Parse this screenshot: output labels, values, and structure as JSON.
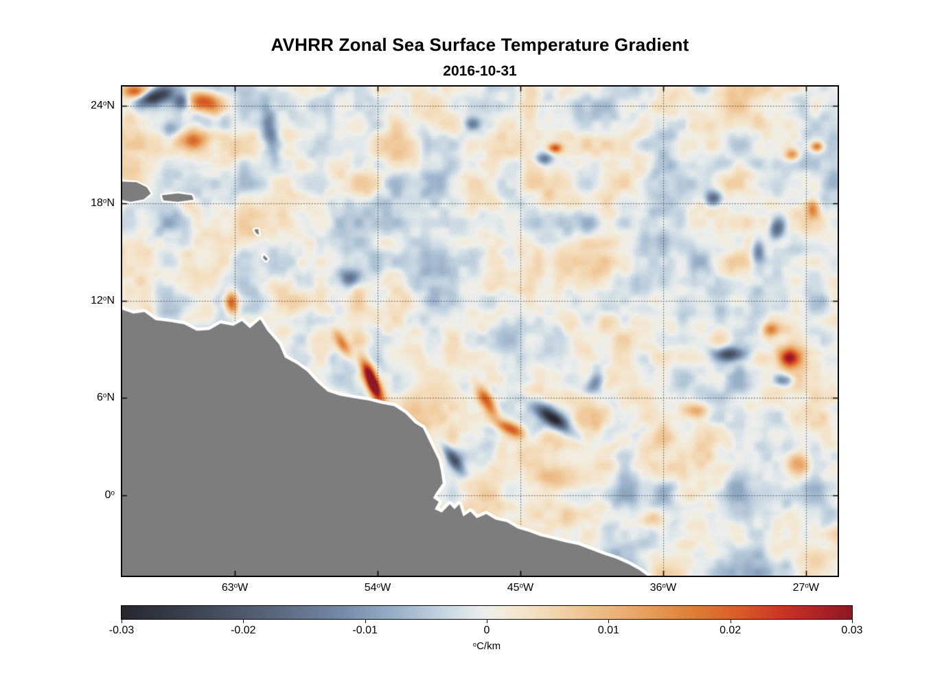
{
  "title": "AVHRR Zonal Sea Surface Temperature Gradient",
  "subtitle": "2016-10-31",
  "chart_data": {
    "type": "heatmap",
    "title": "AVHRR Zonal Sea Surface Temperature Gradient",
    "date": "2016-10-31",
    "variable": "zonal sea surface temperature gradient",
    "deg_symbol": "o",
    "unit_text": "C/km",
    "geo": {
      "lon_min": -70.1,
      "lon_max": -25.0,
      "lat_min": -4.95,
      "lat_max": 25.2
    },
    "x_ticks": [
      {
        "label_num": "63",
        "label_hemi": "W",
        "lon": -63
      },
      {
        "label_num": "54",
        "label_hemi": "W",
        "lon": -54
      },
      {
        "label_num": "45",
        "label_hemi": "W",
        "lon": -45
      },
      {
        "label_num": "36",
        "label_hemi": "W",
        "lon": -36
      },
      {
        "label_num": "27",
        "label_hemi": "W",
        "lon": -27
      }
    ],
    "y_ticks": [
      {
        "label_num": "24",
        "label_hemi": "N",
        "lat": 24
      },
      {
        "label_num": "18",
        "label_hemi": "N",
        "lat": 18
      },
      {
        "label_num": "12",
        "label_hemi": "N",
        "lat": 12
      },
      {
        "label_num": "6",
        "label_hemi": "N",
        "lat": 6
      },
      {
        "label_num": "0",
        "label_hemi": "",
        "lat": 0
      }
    ],
    "grid": {
      "on": true,
      "style": "dotted",
      "color": "#3a3a3a"
    },
    "colorbar": {
      "orientation": "horizontal",
      "min": -0.03,
      "max": 0.03,
      "ticks": [
        {
          "label": "-0.03",
          "v": -0.03
        },
        {
          "label": "-0.02",
          "v": -0.02
        },
        {
          "label": "-0.01",
          "v": -0.01
        },
        {
          "label": "0",
          "v": 0
        },
        {
          "label": "0.01",
          "v": 0.01
        },
        {
          "label": "0.02",
          "v": 0.02
        },
        {
          "label": "0.03",
          "v": 0.03
        }
      ],
      "stops": [
        {
          "p": 0.0,
          "c": "#27272f"
        },
        {
          "p": 0.1,
          "c": "#3d4452"
        },
        {
          "p": 0.2,
          "c": "#57647a"
        },
        {
          "p": 0.3,
          "c": "#7389a6"
        },
        {
          "p": 0.38,
          "c": "#9cb3cb"
        },
        {
          "p": 0.44,
          "c": "#c5d5e1"
        },
        {
          "p": 0.48,
          "c": "#e1e8ea"
        },
        {
          "p": 0.5,
          "c": "#edeeec"
        },
        {
          "p": 0.52,
          "c": "#f2ecdd"
        },
        {
          "p": 0.56,
          "c": "#f4e1c5"
        },
        {
          "p": 0.62,
          "c": "#f0ca9c"
        },
        {
          "p": 0.7,
          "c": "#eaa869"
        },
        {
          "p": 0.78,
          "c": "#e07f37"
        },
        {
          "p": 0.85,
          "c": "#d85927"
        },
        {
          "p": 0.91,
          "c": "#c83225"
        },
        {
          "p": 0.96,
          "c": "#ac2026"
        },
        {
          "p": 1.0,
          "c": "#8d1823"
        }
      ]
    },
    "sea_noise": {
      "seed": 11,
      "octaves": [
        {
          "scale": 2.4,
          "amp": 0.0052
        },
        {
          "scale": 1.2,
          "amp": 0.0036
        },
        {
          "scale": 0.6,
          "amp": 0.002
        }
      ]
    },
    "features_format": [
      "lon",
      "lat",
      "value_C_per_km",
      "sigma_x_deg",
      "sigma_y_deg",
      "rotation_deg"
    ],
    "features": [
      [
        -68.0,
        24.6,
        -0.028,
        0.9,
        0.35,
        20
      ],
      [
        -69.3,
        24.9,
        0.018,
        0.5,
        0.3,
        0
      ],
      [
        -64.8,
        24.2,
        0.027,
        0.8,
        0.45,
        -15
      ],
      [
        -66.4,
        24.3,
        -0.02,
        0.35,
        0.35,
        0
      ],
      [
        -65.7,
        21.9,
        0.02,
        0.6,
        0.45,
        0
      ],
      [
        -67.0,
        22.6,
        -0.012,
        0.5,
        0.4,
        0
      ],
      [
        -60.7,
        22.3,
        -0.014,
        0.35,
        1.1,
        10
      ],
      [
        -54.2,
        6.7,
        0.036,
        0.28,
        0.8,
        24
      ],
      [
        -54.7,
        7.8,
        0.018,
        0.3,
        0.8,
        24
      ],
      [
        -47.1,
        5.8,
        0.022,
        0.3,
        0.8,
        30
      ],
      [
        -45.6,
        4.1,
        0.022,
        0.28,
        0.7,
        65
      ],
      [
        -42.9,
        4.7,
        -0.026,
        0.3,
        1.0,
        55
      ],
      [
        -49.2,
        2.2,
        -0.018,
        0.25,
        0.7,
        37
      ],
      [
        -63.2,
        11.9,
        0.026,
        0.3,
        0.5,
        0
      ],
      [
        -28.1,
        8.5,
        0.026,
        0.55,
        0.45,
        0
      ],
      [
        -29.2,
        10.2,
        0.014,
        0.4,
        0.3,
        0
      ],
      [
        -31.8,
        8.7,
        -0.022,
        0.3,
        0.7,
        90
      ],
      [
        -28.3,
        7.1,
        -0.014,
        0.4,
        0.25,
        0
      ],
      [
        -32.8,
        18.3,
        -0.016,
        0.35,
        0.3,
        0
      ],
      [
        -28.8,
        16.4,
        -0.018,
        0.5,
        0.35,
        70
      ],
      [
        -30.0,
        15.1,
        -0.016,
        0.6,
        0.3,
        90
      ],
      [
        -26.6,
        17.7,
        0.016,
        0.3,
        0.4,
        0
      ],
      [
        -26.3,
        21.5,
        0.02,
        0.28,
        0.22,
        0
      ],
      [
        -27.9,
        21.0,
        0.014,
        0.3,
        0.25,
        0
      ],
      [
        -42.8,
        21.4,
        0.022,
        0.3,
        0.22,
        0
      ],
      [
        -43.5,
        20.7,
        -0.014,
        0.35,
        0.25,
        0
      ],
      [
        -48.0,
        22.9,
        -0.013,
        0.4,
        0.3,
        0
      ],
      [
        -56.2,
        9.3,
        0.016,
        0.25,
        0.7,
        30
      ],
      [
        -55.7,
        13.4,
        -0.013,
        0.45,
        0.35,
        0
      ],
      [
        -34.0,
        5.2,
        0.012,
        0.5,
        0.35,
        0
      ],
      [
        -27.6,
        1.9,
        0.013,
        0.5,
        0.4,
        0
      ],
      [
        -40.3,
        6.9,
        -0.011,
        0.5,
        0.3,
        55
      ],
      [
        -36.6,
        -1.5,
        0.01,
        0.6,
        0.4,
        0
      ]
    ],
    "land": {
      "fill": "#7d7d7d",
      "halo": "#ffffff",
      "mainland": [
        [
          -70.1,
          11.45
        ],
        [
          -69.4,
          11.2
        ],
        [
          -68.7,
          11.3
        ],
        [
          -68.0,
          10.8
        ],
        [
          -67.1,
          10.7
        ],
        [
          -66.2,
          10.55
        ],
        [
          -65.4,
          10.15
        ],
        [
          -64.6,
          10.2
        ],
        [
          -63.9,
          10.6
        ],
        [
          -63.1,
          10.45
        ],
        [
          -62.55,
          10.75
        ],
        [
          -62.05,
          10.3
        ],
        [
          -61.4,
          10.85
        ],
        [
          -60.95,
          10.15
        ],
        [
          -60.55,
          9.7
        ],
        [
          -60.2,
          9.3
        ],
        [
          -59.85,
          8.5
        ],
        [
          -59.1,
          8.1
        ],
        [
          -58.45,
          7.65
        ],
        [
          -57.85,
          7.0
        ],
        [
          -57.15,
          6.4
        ],
        [
          -56.4,
          6.15
        ],
        [
          -55.5,
          6.0
        ],
        [
          -54.55,
          5.85
        ],
        [
          -53.75,
          5.65
        ],
        [
          -52.95,
          5.5
        ],
        [
          -52.25,
          5.05
        ],
        [
          -51.65,
          4.45
        ],
        [
          -51.15,
          4.15
        ],
        [
          -50.85,
          3.55
        ],
        [
          -50.5,
          2.85
        ],
        [
          -50.15,
          2.15
        ],
        [
          -50.0,
          1.45
        ],
        [
          -49.9,
          0.75
        ],
        [
          -50.3,
          0.2
        ],
        [
          -50.5,
          -0.15
        ],
        [
          -50.15,
          -0.4
        ],
        [
          -50.4,
          -0.85
        ],
        [
          -49.95,
          -1.05
        ],
        [
          -49.45,
          -0.55
        ],
        [
          -49.15,
          -0.85
        ],
        [
          -48.85,
          -0.55
        ],
        [
          -48.6,
          -1.3
        ],
        [
          -48.15,
          -1.0
        ],
        [
          -47.75,
          -1.4
        ],
        [
          -47.15,
          -1.15
        ],
        [
          -46.55,
          -1.5
        ],
        [
          -45.85,
          -1.65
        ],
        [
          -45.15,
          -2.05
        ],
        [
          -44.45,
          -2.25
        ],
        [
          -43.75,
          -2.5
        ],
        [
          -42.95,
          -2.7
        ],
        [
          -42.15,
          -2.9
        ],
        [
          -41.35,
          -3.05
        ],
        [
          -40.55,
          -3.35
        ],
        [
          -39.75,
          -3.65
        ],
        [
          -38.95,
          -3.9
        ],
        [
          -38.15,
          -4.25
        ],
        [
          -37.5,
          -4.6
        ],
        [
          -36.95,
          -5.0
        ],
        [
          -70.1,
          -5.0
        ]
      ],
      "islands": [
        [
          [
            -70.1,
            19.35
          ],
          [
            -69.2,
            19.3
          ],
          [
            -68.55,
            19.0
          ],
          [
            -68.3,
            18.6
          ],
          [
            -68.75,
            18.25
          ],
          [
            -69.55,
            18.1
          ],
          [
            -70.1,
            18.2
          ]
        ],
        [
          [
            -67.6,
            18.5
          ],
          [
            -66.6,
            18.62
          ],
          [
            -65.7,
            18.5
          ],
          [
            -65.6,
            18.22
          ],
          [
            -66.6,
            18.1
          ],
          [
            -67.5,
            18.18
          ]
        ],
        [
          [
            -61.78,
            16.38
          ],
          [
            -61.52,
            16.42
          ],
          [
            -61.48,
            16.05
          ],
          [
            -61.68,
            16.18
          ]
        ],
        [
          [
            -61.18,
            14.82
          ],
          [
            -60.92,
            14.58
          ],
          [
            -61.02,
            14.45
          ],
          [
            -61.22,
            14.62
          ]
        ]
      ]
    }
  }
}
